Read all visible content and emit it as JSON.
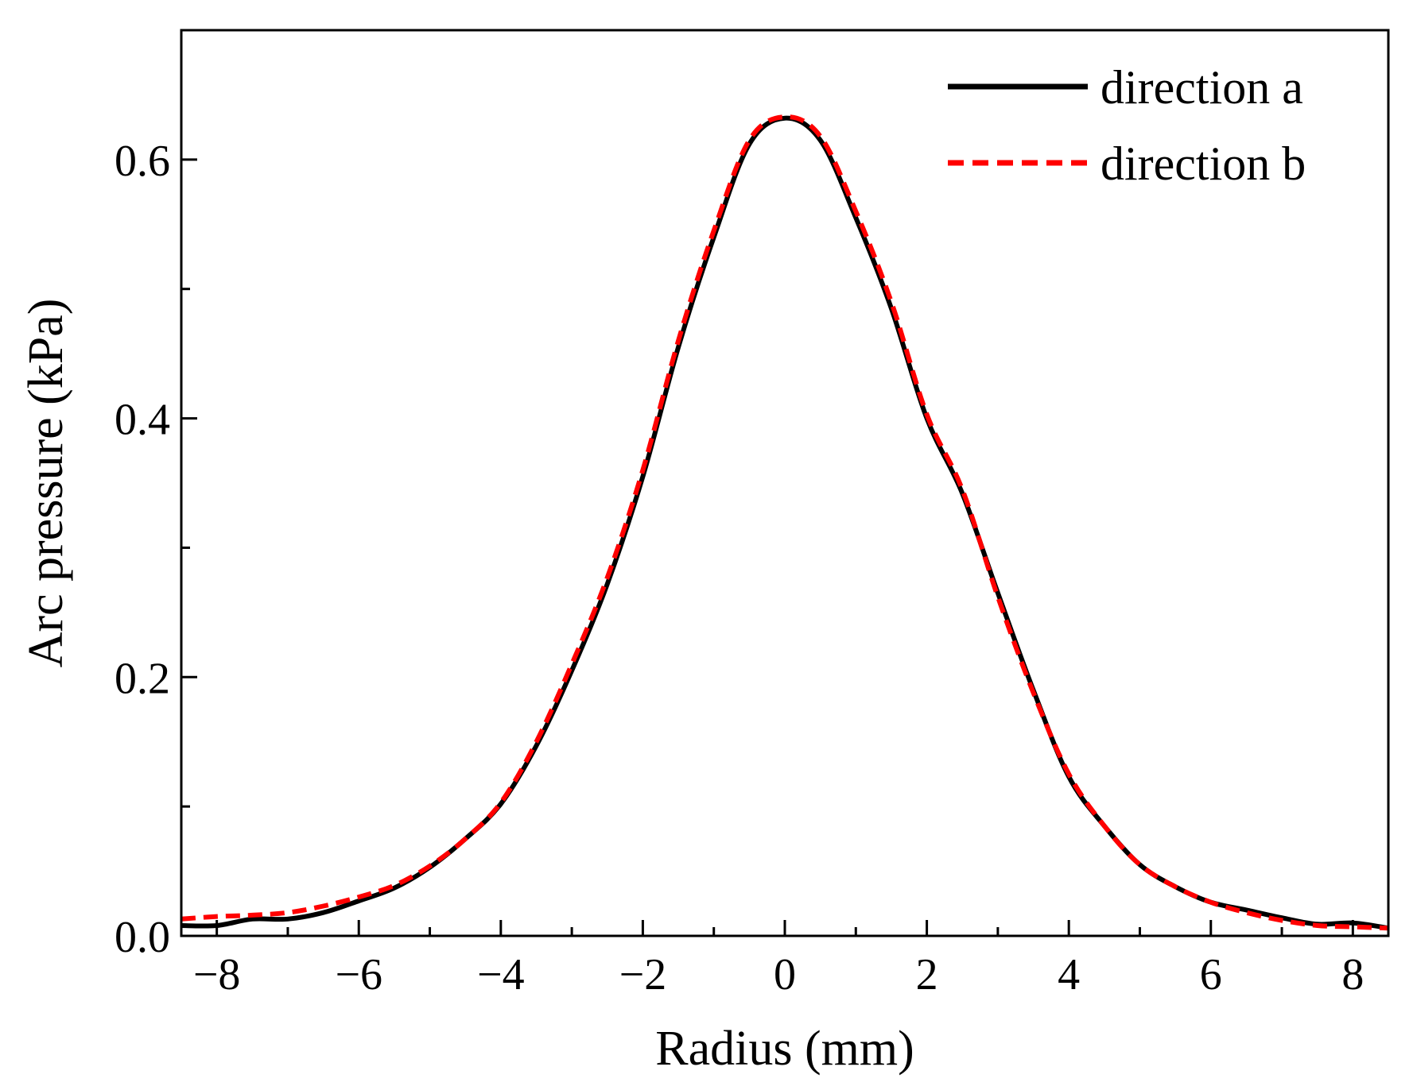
{
  "chart_data": {
    "type": "line",
    "title": "",
    "xlabel": "Radius (mm)",
    "ylabel": "Arc pressure (kPa)",
    "xlim": [
      -8.5,
      8.5
    ],
    "ylim": [
      0.0,
      0.7
    ],
    "x_ticks": [
      -8,
      -6,
      -4,
      -2,
      0,
      2,
      4,
      6,
      8
    ],
    "x_tick_labels": [
      "−8",
      "−6",
      "−4",
      "−2",
      "0",
      "2",
      "4",
      "6",
      "8"
    ],
    "x_minor_ticks": [
      -7,
      -5,
      -3,
      -1,
      1,
      3,
      5,
      7
    ],
    "y_ticks": [
      0.0,
      0.2,
      0.4,
      0.6
    ],
    "y_tick_labels": [
      "0.0",
      "0.2",
      "0.4",
      "0.6"
    ],
    "y_minor_ticks": [
      0.1,
      0.3,
      0.5
    ],
    "grid": false,
    "legend_position": "top-right",
    "x": [
      -8.5,
      -8.0,
      -7.5,
      -7.0,
      -6.5,
      -6.0,
      -5.5,
      -5.0,
      -4.5,
      -4.0,
      -3.5,
      -3.0,
      -2.5,
      -2.0,
      -1.5,
      -1.0,
      -0.5,
      0.0,
      0.5,
      1.0,
      1.5,
      2.0,
      2.5,
      3.0,
      3.5,
      4.0,
      4.5,
      5.0,
      5.5,
      6.0,
      6.5,
      7.0,
      7.5,
      8.0,
      8.5
    ],
    "series": [
      {
        "name": "direction a",
        "color": "#000000",
        "style": "solid",
        "values": [
          0.008,
          0.008,
          0.013,
          0.013,
          0.018,
          0.027,
          0.037,
          0.053,
          0.075,
          0.102,
          0.147,
          0.205,
          0.272,
          0.355,
          0.455,
          0.54,
          0.612,
          0.632,
          0.615,
          0.555,
          0.485,
          0.4,
          0.342,
          0.265,
          0.19,
          0.123,
          0.085,
          0.055,
          0.038,
          0.026,
          0.02,
          0.014,
          0.009,
          0.01,
          0.006
        ]
      },
      {
        "name": "direction b",
        "color": "#ff0000",
        "style": "dashed",
        "values": [
          0.013,
          0.015,
          0.016,
          0.018,
          0.023,
          0.03,
          0.039,
          0.054,
          0.075,
          0.103,
          0.15,
          0.21,
          0.277,
          0.36,
          0.46,
          0.545,
          0.615,
          0.633,
          0.618,
          0.56,
          0.49,
          0.403,
          0.345,
          0.262,
          0.188,
          0.125,
          0.085,
          0.055,
          0.038,
          0.026,
          0.018,
          0.012,
          0.008,
          0.007,
          0.006
        ]
      }
    ]
  }
}
